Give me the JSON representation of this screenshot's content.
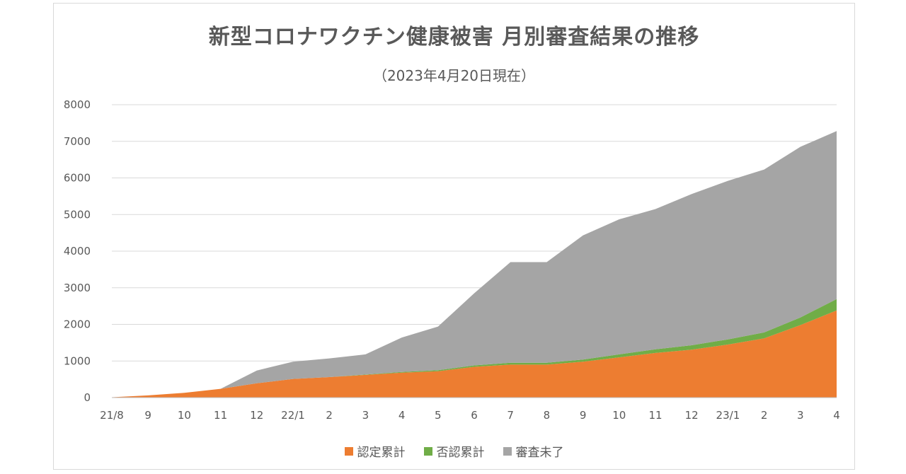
{
  "chart_data": {
    "type": "area",
    "stacked": true,
    "title": "新型コロナワクチン健康被害 月別審査結果の推移",
    "subtitle": "（2023年4月20日現在）",
    "categories": [
      "21/8",
      "9",
      "10",
      "11",
      "12",
      "22/1",
      "2",
      "3",
      "4",
      "5",
      "6",
      "7",
      "8",
      "9",
      "10",
      "11",
      "12",
      "23/1",
      "2",
      "3",
      "4"
    ],
    "ylim": [
      0,
      8000
    ],
    "yticks": [
      0,
      1000,
      2000,
      3000,
      4000,
      5000,
      6000,
      7000,
      8000
    ],
    "grid": true,
    "legend_position": "bottom",
    "series": [
      {
        "name": "認定累計",
        "color": "#ed7d31",
        "values": [
          10,
          60,
          130,
          240,
          390,
          510,
          560,
          620,
          680,
          720,
          840,
          900,
          900,
          980,
          1100,
          1220,
          1310,
          1450,
          1620,
          1980,
          2380
        ]
      },
      {
        "name": "否認累計",
        "color": "#70ad47",
        "values": [
          0,
          0,
          0,
          0,
          0,
          0,
          0,
          10,
          20,
          30,
          40,
          50,
          50,
          60,
          80,
          100,
          120,
          140,
          160,
          210,
          310
        ]
      },
      {
        "name": "審査未了",
        "color": "#a5a5a5",
        "values": [
          0,
          0,
          0,
          0,
          350,
          470,
          510,
          550,
          940,
          1190,
          1970,
          2750,
          2750,
          3390,
          3690,
          3830,
          4130,
          4330,
          4450,
          4660,
          4590
        ]
      }
    ]
  }
}
